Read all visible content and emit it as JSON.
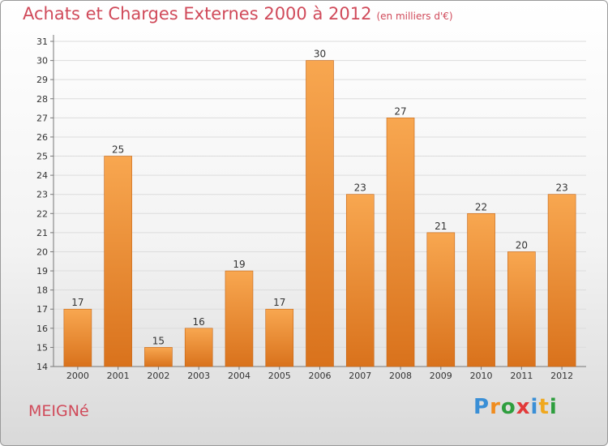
{
  "header": {
    "title": "Achats et Charges Externes 2000 à 2012",
    "unit": "(en milliers d'€)"
  },
  "footer": {
    "city": "MEIGNé",
    "logo_text": "Proxiti",
    "logo_colors": [
      "#3a8fd6",
      "#f08c1e",
      "#2e9e3e",
      "#e23a3a",
      "#3a8fd6",
      "#f0a81e",
      "#2e9e3e"
    ]
  },
  "colors": {
    "bar_top": "#f8a750",
    "bar_bottom": "#d9721c",
    "bar_border": "#c46516",
    "grid": "#dcdcdc",
    "axis": "#777777",
    "text": "#333333"
  },
  "chart_data": {
    "type": "bar",
    "categories": [
      "2000",
      "2001",
      "2002",
      "2003",
      "2004",
      "2005",
      "2006",
      "2007",
      "2008",
      "2009",
      "2010",
      "2011",
      "2012"
    ],
    "values": [
      17,
      25,
      15,
      16,
      19,
      17,
      30,
      23,
      27,
      21,
      22,
      20,
      23
    ],
    "data_labels": [
      "17",
      "25",
      "15",
      "16",
      "19",
      "17",
      "30",
      "23",
      "27",
      "21",
      "22",
      "20",
      "23"
    ],
    "yticks": [
      "14",
      "15",
      "16",
      "17",
      "18",
      "19",
      "20",
      "21",
      "22",
      "23",
      "24",
      "25",
      "26",
      "27",
      "28",
      "29",
      "30",
      "31"
    ],
    "ylim": [
      14,
      31
    ],
    "grid": true,
    "title": "Achats et Charges Externes 2000 à 2012",
    "xlabel": "",
    "ylabel": ""
  }
}
